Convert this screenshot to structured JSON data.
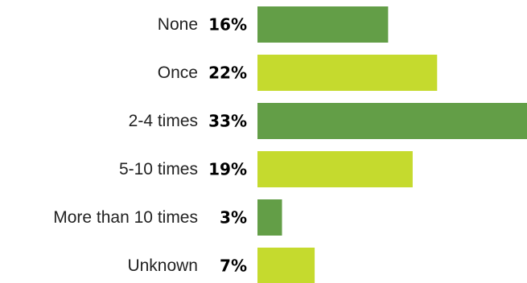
{
  "colors": {
    "bar_dark": "#639e47",
    "bar_light": "#c5da2e"
  },
  "chart_data": {
    "type": "bar",
    "orientation": "horizontal",
    "categories": [
      "None",
      "Once",
      "2-4 times",
      "5-10 times",
      "More than 10 times",
      "Unknown"
    ],
    "values": [
      16,
      22,
      33,
      19,
      3,
      7
    ],
    "value_labels": [
      "16%",
      "22%",
      "33%",
      "19%",
      "3%",
      "7%"
    ],
    "bar_colors": [
      "#639e47",
      "#c5da2e",
      "#639e47",
      "#c5da2e",
      "#639e47",
      "#c5da2e"
    ],
    "unit": "%",
    "xlim": [
      0,
      33
    ],
    "title": "",
    "xlabel": "",
    "ylabel": "",
    "grid": false,
    "legend": "none"
  }
}
